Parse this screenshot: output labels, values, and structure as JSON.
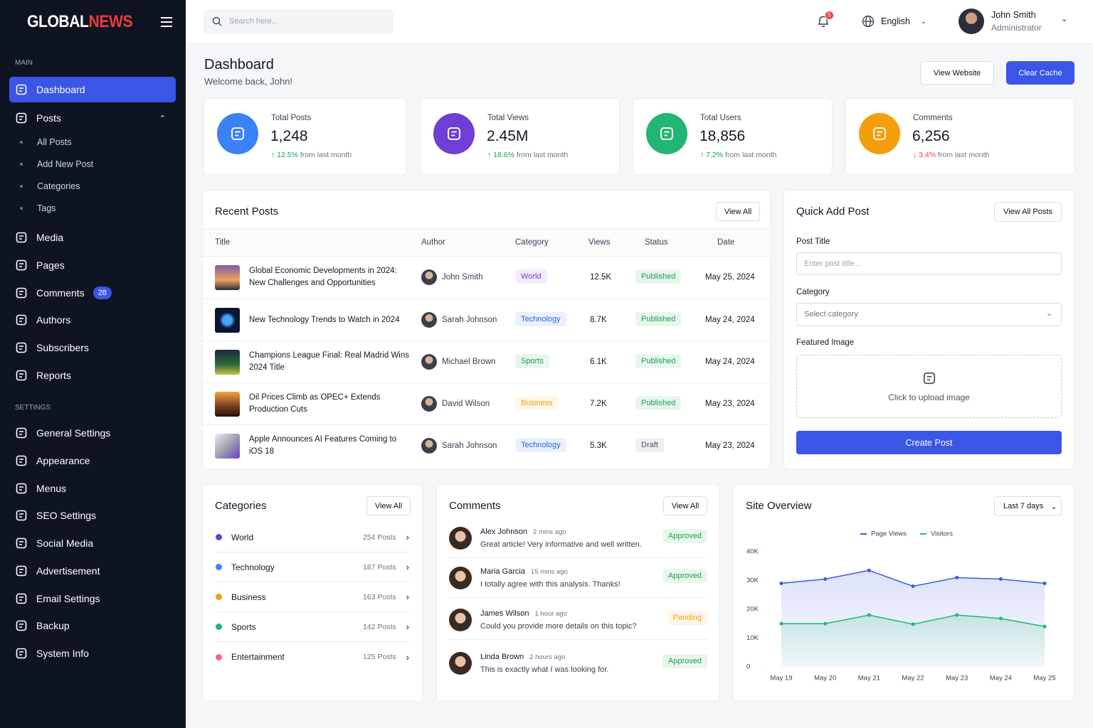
{
  "sidebar": {
    "brand_a": "GLOBAL",
    "brand_b": "NEWS",
    "main_label": "MAIN",
    "main": [
      {
        "label": "Dashboard"
      },
      {
        "label": "Posts",
        "children": [
          "All Posts",
          "Add New Post",
          "Categories",
          "Tags"
        ]
      },
      {
        "label": "Media"
      },
      {
        "label": "Pages"
      },
      {
        "label": "Comments",
        "badge": 28
      },
      {
        "label": "Authors"
      },
      {
        "label": "Subscribers"
      },
      {
        "label": "Reports"
      }
    ],
    "settings_label": "SETTINGS",
    "settings": [
      "General Settings",
      "Appearance",
      "Menus",
      "SEO Settings",
      "Social Media",
      "Advertisement",
      "Email Settings",
      "Backup",
      "System Info"
    ]
  },
  "header": {
    "search_placeholder": "Search here...",
    "notifications": 5,
    "language": "English",
    "user_name": "John Smith",
    "user_role": "Administrator"
  },
  "page": {
    "title": "Dashboard",
    "subtitle": "Welcome back, John!",
    "buttons": [
      "View Website",
      "Clear Cache"
    ]
  },
  "stats": [
    {
      "label": "Total Posts",
      "value": "1,248",
      "change": "12.5%",
      "change_text": "from last month",
      "direction": "up",
      "color": "#3b82f6"
    },
    {
      "label": "Total Views",
      "value": "2.45M",
      "change": "18.6%",
      "change_text": "from last month",
      "direction": "up",
      "color": "#6d3fd4"
    },
    {
      "label": "Total Users",
      "value": "18,856",
      "change": "7.2%",
      "change_text": "from last month",
      "direction": "up",
      "color": "#22b573"
    },
    {
      "label": "Comments",
      "value": "6,256",
      "change": "3.4%",
      "change_text": "from last month",
      "direction": "down",
      "color": "#f59e0b"
    }
  ],
  "recent_posts": {
    "title": "Recent Posts",
    "view_all": "View All",
    "columns": [
      "Title",
      "Author",
      "Category",
      "Views",
      "Status",
      "Date"
    ],
    "rows": [
      {
        "title": "Global Economic Developments in 2024: New Challenges and Opportunities",
        "author": "John Smith",
        "category": "World",
        "category_color": "#7c3aed",
        "views": "12.5K",
        "status": "Published",
        "status_color": "#16a34a",
        "date": "May 25, 2024"
      },
      {
        "title": "New Technology Trends to Watch in 2024",
        "author": "Sarah Johnson",
        "category": "Technology",
        "category_color": "#2563eb",
        "views": "8.7K",
        "status": "Published",
        "status_color": "#16a34a",
        "date": "May 24, 2024"
      },
      {
        "title": "Champions League Final: Real Madrid Wins 2024 Title",
        "author": "Michael Brown",
        "category": "Sports",
        "category_color": "#16a34a",
        "views": "6.1K",
        "status": "Published",
        "status_color": "#16a34a",
        "date": "May 24, 2024"
      },
      {
        "title": "Oil Prices Climb as OPEC+ Extends Production Cuts",
        "author": "David Wilson",
        "category": "Business",
        "category_color": "#f59e0b",
        "views": "7.2K",
        "status": "Published",
        "status_color": "#16a34a",
        "date": "May 23, 2024"
      },
      {
        "title": "Apple Announces AI Features Coming to iOS 18",
        "author": "Sarah Johnson",
        "category": "Technology",
        "category_color": "#2563eb",
        "views": "5.3K",
        "status": "Draft",
        "status_color": "#4b5563",
        "date": "May 23, 2024"
      }
    ]
  },
  "quick_add": {
    "title": "Quick Add Post",
    "view_all": "View All Posts",
    "post_title_label": "Post Title",
    "post_title_placeholder": "Enter post title...",
    "category_label": "Category",
    "category_placeholder": "Select category",
    "image_label": "Featured Image",
    "upload_text": "Click to upload image",
    "submit": "Create Post"
  },
  "categories": {
    "title": "Categories",
    "view_all": "View All",
    "items": [
      {
        "name": "World",
        "count": "254 Posts",
        "color": "#6d3fd4"
      },
      {
        "name": "Technology",
        "count": "187 Posts",
        "color": "#3b82f6"
      },
      {
        "name": "Business",
        "count": "163 Posts",
        "color": "#f59e0b"
      },
      {
        "name": "Sports",
        "count": "142 Posts",
        "color": "#22b573"
      },
      {
        "name": "Entertainment",
        "count": "125 Posts",
        "color": "#f0648a"
      }
    ]
  },
  "comments": {
    "title": "Comments",
    "view_all": "View All",
    "items": [
      {
        "name": "Alex Johnson",
        "time": "2 mins ago",
        "text": "Great article! Very informative and well written.",
        "status": "Approved",
        "status_color": "#16a34a"
      },
      {
        "name": "Maria Garcia",
        "time": "15 mins ago",
        "text": "I totally agree with this analysis. Thanks!",
        "status": "Approved",
        "status_color": "#16a34a"
      },
      {
        "name": "James Wilson",
        "time": "1 hour ago",
        "text": "Could you provide more details on this topic?",
        "status": "Pending",
        "status_color": "#f59e0b"
      },
      {
        "name": "Linda Brown",
        "time": "2 hours ago",
        "text": "This is exactly what I was looking for.",
        "status": "Approved",
        "status_color": "#16a34a"
      }
    ]
  },
  "chart_data": {
    "type": "line",
    "title": "Site Overview",
    "range": "Last 7 days",
    "categories": [
      "May 19",
      "May 20",
      "May 21",
      "May 22",
      "May 23",
      "May 24",
      "May 25"
    ],
    "series": [
      {
        "name": "Page Views",
        "color": "#3b5bdb",
        "values": [
          29000,
          30500,
          33500,
          28000,
          31000,
          30500,
          29000
        ]
      },
      {
        "name": "Visitors",
        "color": "#22b573",
        "values": [
          15000,
          15000,
          18000,
          14800,
          18000,
          16800,
          14000
        ]
      }
    ],
    "ylim": [
      0,
      40000
    ],
    "yticks": [
      0,
      {
        "value": 10000,
        "label": "10K"
      },
      {
        "value": 20000,
        "label": "20K"
      },
      {
        "value": 30000,
        "label": "30K"
      },
      {
        "value": 40000,
        "label": "40K"
      }
    ],
    "legend": "top"
  }
}
